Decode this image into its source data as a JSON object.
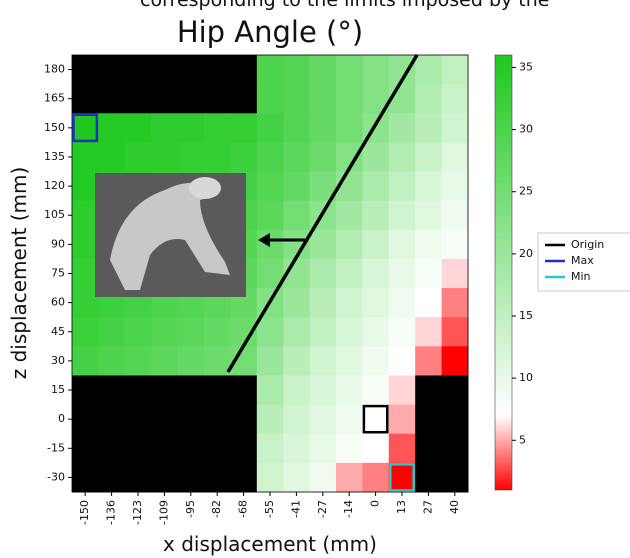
{
  "chart_data": {
    "type": "heatmap",
    "caption": "corresponding to the limits imposed by the",
    "title": "Hip Angle (°)",
    "x_label": "x displacement (mm)",
    "y_label": "z displacement (mm)",
    "x_categories": [
      -150,
      -136,
      -123,
      -109,
      -95,
      -82,
      -68,
      -55,
      -41,
      -27,
      -14,
      0,
      13,
      27,
      40
    ],
    "y_categories": [
      180,
      165,
      150,
      135,
      120,
      105,
      90,
      75,
      60,
      45,
      30,
      15,
      0,
      -15,
      -30
    ],
    "values": [
      [
        null,
        null,
        null,
        null,
        null,
        null,
        null,
        30,
        29,
        27,
        25,
        23,
        21,
        18,
        15
      ],
      [
        null,
        null,
        null,
        null,
        null,
        null,
        null,
        30,
        29,
        27,
        25,
        23,
        21,
        17,
        14
      ],
      [
        36,
        35,
        35,
        34,
        34,
        33,
        33,
        31,
        29,
        27,
        25,
        22,
        19,
        16,
        13
      ],
      [
        35,
        35,
        34,
        34,
        33,
        33,
        32,
        30,
        28,
        26,
        23,
        20,
        17,
        14,
        11
      ],
      [
        35,
        34,
        34,
        33,
        33,
        32,
        31,
        29,
        27,
        24,
        21,
        18,
        15,
        12,
        10
      ],
      [
        34,
        34,
        33,
        33,
        32,
        31,
        30,
        28,
        25,
        22,
        19,
        16,
        13,
        11,
        9
      ],
      [
        34,
        33,
        33,
        32,
        31,
        30,
        29,
        26,
        23,
        20,
        17,
        14,
        11,
        9,
        8
      ],
      [
        33,
        33,
        32,
        31,
        30,
        29,
        28,
        25,
        21,
        18,
        15,
        12,
        10,
        8,
        6
      ],
      [
        33,
        32,
        31,
        30,
        29,
        28,
        27,
        23,
        20,
        16,
        13,
        11,
        9,
        7,
        4
      ],
      [
        32,
        31,
        30,
        29,
        28,
        27,
        26,
        22,
        18,
        15,
        12,
        10,
        8,
        6,
        3
      ],
      [
        31,
        30,
        29,
        28,
        27,
        26,
        25,
        20,
        16,
        13,
        11,
        9,
        7,
        4,
        1
      ],
      [
        null,
        null,
        null,
        null,
        null,
        null,
        null,
        18,
        14,
        12,
        10,
        8,
        6,
        null,
        null
      ],
      [
        null,
        null,
        null,
        null,
        null,
        null,
        null,
        16,
        13,
        11,
        9,
        7,
        5,
        null,
        null
      ],
      [
        null,
        null,
        null,
        null,
        null,
        null,
        null,
        14,
        12,
        10,
        8,
        7,
        3,
        null,
        null
      ],
      [
        null,
        null,
        null,
        null,
        null,
        null,
        null,
        13,
        11,
        9,
        5,
        4,
        1,
        null,
        null
      ]
    ],
    "mask_color": "#000000",
    "colormap": {
      "stops": [
        1,
        7,
        36
      ],
      "colors": [
        "#ff0000",
        "#ffffff",
        "#1ec81e"
      ]
    },
    "colorbar": {
      "lim": [
        1,
        36
      ],
      "ticks": [
        5,
        10,
        15,
        20,
        25,
        30,
        35
      ]
    },
    "markers": [
      {
        "name": "Origin",
        "color": "#000000",
        "x": 0,
        "y": 0
      },
      {
        "name": "Max",
        "color": "#1f2fbf",
        "x": -150,
        "y": 150
      },
      {
        "name": "Min",
        "color": "#22cccc",
        "x": 13,
        "y": -30
      }
    ]
  }
}
